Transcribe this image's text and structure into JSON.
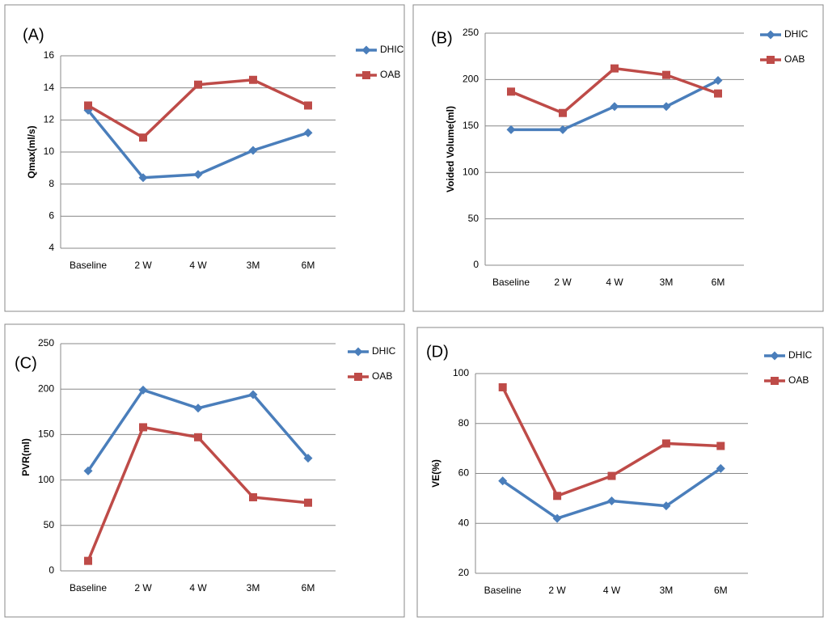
{
  "chart_data": [
    {
      "type": "line",
      "title": "(A)",
      "y_label": "Qmax(ml/s)",
      "categories": [
        "Baseline",
        "2 W",
        "4 W",
        "3M",
        "6M"
      ],
      "series": [
        {
          "name": "DHIC",
          "color": "#4a7ebb",
          "marker": "diamond",
          "values": [
            12.6,
            8.4,
            8.6,
            10.1,
            11.2
          ]
        },
        {
          "name": "OAB",
          "color": "#be4b48",
          "marker": "square",
          "values": [
            12.9,
            10.9,
            14.2,
            14.5,
            12.9
          ]
        }
      ],
      "ylim": [
        4,
        16
      ],
      "yticks": [
        4,
        6,
        8,
        10,
        12,
        14,
        16
      ],
      "grid": true
    },
    {
      "type": "line",
      "title": "(B)",
      "y_label": "Voided Volume(ml)",
      "categories": [
        "Baseline",
        "2 W",
        "4 W",
        "3M",
        "6M"
      ],
      "series": [
        {
          "name": "DHIC",
          "color": "#4a7ebb",
          "marker": "diamond",
          "values": [
            146,
            146,
            171,
            171,
            199
          ]
        },
        {
          "name": "OAB",
          "color": "#be4b48",
          "marker": "square",
          "values": [
            187,
            164,
            212,
            205,
            185
          ]
        }
      ],
      "ylim": [
        0,
        250
      ],
      "yticks": [
        0,
        50,
        100,
        150,
        200,
        250
      ],
      "grid": true
    },
    {
      "type": "line",
      "title": "(C)",
      "y_label": "PVR(ml)",
      "categories": [
        "Baseline",
        "2 W",
        "4 W",
        "3M",
        "6M"
      ],
      "series": [
        {
          "name": "DHIC",
          "color": "#4a7ebb",
          "marker": "diamond",
          "values": [
            110,
            199,
            179,
            194,
            124
          ]
        },
        {
          "name": "OAB",
          "color": "#be4b48",
          "marker": "square",
          "values": [
            11,
            158,
            147,
            81,
            75
          ]
        }
      ],
      "ylim": [
        0,
        250
      ],
      "yticks": [
        0,
        50,
        100,
        150,
        200,
        250
      ],
      "grid": true
    },
    {
      "type": "line",
      "title": "(D)",
      "y_label": "VE(%)",
      "categories": [
        "Baseline",
        "2 W",
        "4 W",
        "3M",
        "6M"
      ],
      "series": [
        {
          "name": "DHIC",
          "color": "#4a7ebb",
          "marker": "diamond",
          "values": [
            57,
            42,
            49,
            47,
            62
          ]
        },
        {
          "name": "OAB",
          "color": "#be4b48",
          "marker": "square",
          "values": [
            94.5,
            51,
            59,
            72,
            71
          ]
        }
      ],
      "ylim": [
        20,
        100
      ],
      "yticks": [
        20,
        40,
        60,
        80,
        100
      ],
      "grid": true
    }
  ]
}
